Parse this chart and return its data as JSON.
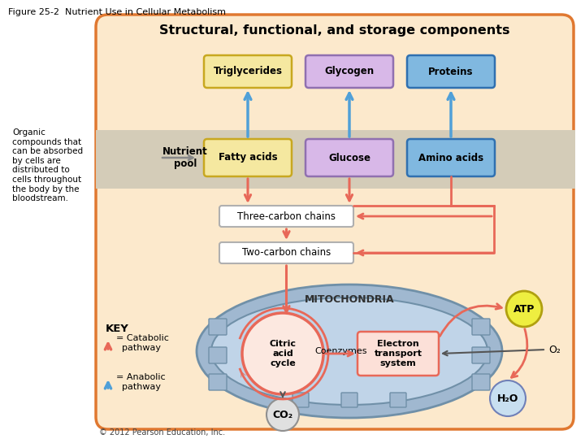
{
  "title": "Figure 25-2  Nutrient Use in Cellular Metabolism",
  "main_title": "Structural, functional, and storage components",
  "bg_outer": "#ffffff",
  "bg_inner": "#fce9cc",
  "border_color": "#e07830",
  "nutrient_pool_bg": "#d4ccb8",
  "box_triglycerides": {
    "label": "Triglycerides",
    "color": "#f5e8a0",
    "border": "#c8a820"
  },
  "box_glycogen": {
    "label": "Glycogen",
    "color": "#d8b8e8",
    "border": "#9070b0"
  },
  "box_proteins": {
    "label": "Proteins",
    "color": "#80b8e0",
    "border": "#3070b0"
  },
  "box_fatty_acids": {
    "label": "Fatty acids",
    "color": "#f5e8a0",
    "border": "#c8a820"
  },
  "box_glucose": {
    "label": "Glucose",
    "color": "#d8b8e8",
    "border": "#9070b0"
  },
  "box_amino_acids": {
    "label": "Amino acids",
    "color": "#80b8e0",
    "border": "#3070b0"
  },
  "nutrient_pool_label": "Nutrient\npool",
  "three_carbon": "Three-carbon chains",
  "two_carbon": "Two-carbon chains",
  "mitochondria_label": "MITOCHONDRIA",
  "citric_acid_label": "Citric\nacid\ncycle",
  "coenzymes_label": "Coenzymes",
  "electron_transport_label": "Electron\ntransport\nsystem",
  "atp_label": "ATP",
  "co2_label": "CO₂",
  "o2_label": "O₂",
  "h2o_label": "H₂O",
  "key_label": "KEY",
  "catabolic_label": "= Catabolic\n  pathway",
  "anabolic_label": "= Anabolic\n  pathway",
  "organic_text": "Organic\ncompounds that\ncan be absorbed\nby cells are\ndistributed to\ncells throughout\nthe body by the\nbloodstream.",
  "copyright": "© 2012 Pearson Education, Inc.",
  "catabolic_color": "#e86858",
  "anabolic_color": "#50a0d8",
  "mito_outer_color": "#a0b8d0",
  "mito_inner_color": "#c0d4e8",
  "citric_circle_color": "#e86858",
  "electron_box_color": "#fce0d8",
  "electron_box_border": "#e86858"
}
